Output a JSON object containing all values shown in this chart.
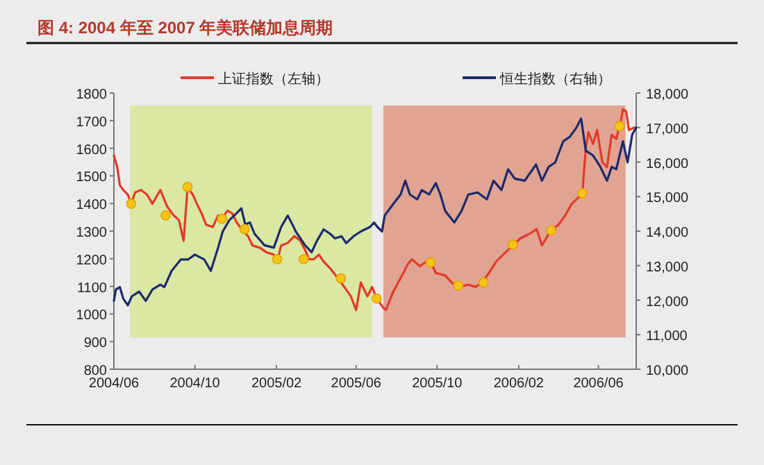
{
  "chart_data": {
    "type": "line",
    "title": "图 4: 2004 年至 2007 年美联储加息周期",
    "legend": "top",
    "grid": false,
    "xlim": [
      "2004-06-01",
      "2006-07-28"
    ],
    "xticks": [
      {
        "value": "2004-06-01",
        "label": "2004/06"
      },
      {
        "value": "2004-10-01",
        "label": "2004/10"
      },
      {
        "value": "2005-02-01",
        "label": "2005/02"
      },
      {
        "value": "2005-06-01",
        "label": "2005/06"
      },
      {
        "value": "2005-10-01",
        "label": "2005/10"
      },
      {
        "value": "2006-02-01",
        "label": "2006/02"
      },
      {
        "value": "2006-06-01",
        "label": "2006/06"
      }
    ],
    "ylim": [
      800,
      1800
    ],
    "yticks": [
      800,
      900,
      1000,
      1100,
      1200,
      1300,
      1400,
      1500,
      1600,
      1700,
      1800
    ],
    "y2lim": [
      10000,
      18000
    ],
    "y2ticks": [
      {
        "value": 10000,
        "label": "10,000"
      },
      {
        "value": 11000,
        "label": "11,000"
      },
      {
        "value": 12000,
        "label": "12,000"
      },
      {
        "value": 13000,
        "label": "13,000"
      },
      {
        "value": 14000,
        "label": "14,000"
      },
      {
        "value": 15000,
        "label": "15,000"
      },
      {
        "value": 16000,
        "label": "16,000"
      },
      {
        "value": 17000,
        "label": "17,000"
      },
      {
        "value": 18000,
        "label": "18,000"
      }
    ],
    "bands": [
      {
        "axis": "x",
        "from": "2004-06-25",
        "to": "2005-06-25",
        "color": "#dbe8a4"
      },
      {
        "axis": "x",
        "from": "2005-07-12",
        "to": "2006-07-12",
        "color": "#e1a493"
      }
    ],
    "series": [
      {
        "name": "上证指数（左轴）",
        "marker": "none",
        "line_style": "solid",
        "color": "#e23a28",
        "x": [
          "2004-06-01",
          "2004-06-06",
          "2004-06-10",
          "2004-06-15",
          "2004-06-22",
          "2004-06-27",
          "2004-07-03",
          "2004-07-12",
          "2004-07-21",
          "2004-07-29",
          "2004-08-10",
          "2004-08-20",
          "2004-08-30",
          "2004-09-07",
          "2004-09-14",
          "2004-09-20",
          "2004-09-28",
          "2004-10-04",
          "2004-10-11",
          "2004-10-18",
          "2004-10-28",
          "2004-11-05",
          "2004-11-12",
          "2004-11-19",
          "2004-11-26",
          "2004-12-03",
          "2004-12-10",
          "2004-12-20",
          "2004-12-27",
          "2005-01-07",
          "2005-01-17",
          "2005-01-28",
          "2005-02-02",
          "2005-02-08",
          "2005-02-18",
          "2005-02-28",
          "2005-03-09",
          "2005-03-16",
          "2005-03-22",
          "2005-03-29",
          "2005-04-06",
          "2005-04-13",
          "2005-04-23",
          "2005-05-04",
          "2005-05-14",
          "2005-05-24",
          "2005-06-01",
          "2005-06-08",
          "2005-06-18",
          "2005-06-25",
          "2005-07-02",
          "2005-07-12",
          "2005-07-16",
          "2005-07-27",
          "2005-08-11",
          "2005-08-18",
          "2005-08-24",
          "2005-09-05",
          "2005-09-15",
          "2005-09-21",
          "2005-09-29",
          "2005-10-13",
          "2005-10-23",
          "2005-11-03",
          "2005-11-17",
          "2005-11-28",
          "2005-12-08",
          "2005-12-18",
          "2005-12-29",
          "2006-01-12",
          "2006-01-23",
          "2006-02-03",
          "2006-02-17",
          "2006-02-28",
          "2006-03-08",
          "2006-03-21",
          "2006-04-02",
          "2006-04-12",
          "2006-04-22",
          "2006-05-03",
          "2006-05-08",
          "2006-05-13",
          "2006-05-17",
          "2006-05-24",
          "2006-05-30",
          "2006-06-07",
          "2006-06-14",
          "2006-06-21",
          "2006-06-28",
          "2006-07-05",
          "2006-07-08",
          "2006-07-13",
          "2006-07-17",
          "2006-07-25"
        ],
        "values": [
          1574,
          1532,
          1466,
          1449,
          1432,
          1399,
          1440,
          1449,
          1432,
          1399,
          1449,
          1390,
          1357,
          1340,
          1265,
          1457,
          1432,
          1399,
          1365,
          1323,
          1315,
          1357,
          1348,
          1374,
          1365,
          1332,
          1307,
          1282,
          1248,
          1240,
          1223,
          1215,
          1190,
          1248,
          1257,
          1282,
          1265,
          1232,
          1198,
          1198,
          1215,
          1190,
          1165,
          1131,
          1098,
          1064,
          1014,
          1114,
          1064,
          1098,
          1056,
          1022,
          1015,
          1081,
          1148,
          1181,
          1198,
          1173,
          1190,
          1190,
          1148,
          1140,
          1114,
          1098,
          1106,
          1098,
          1114,
          1148,
          1190,
          1223,
          1248,
          1273,
          1290,
          1307,
          1248,
          1302,
          1323,
          1357,
          1399,
          1424,
          1440,
          1599,
          1658,
          1616,
          1666,
          1549,
          1532,
          1649,
          1633,
          1700,
          1741,
          1733,
          1666,
          1675
        ]
      },
      {
        "name": "恒生指数（右轴）",
        "axis": "y2",
        "marker": "none",
        "line_style": "solid",
        "color": "#1c2a6c",
        "x": [
          "2004-06-01",
          "2004-06-04",
          "2004-06-10",
          "2004-06-15",
          "2004-06-22",
          "2004-06-28",
          "2004-07-09",
          "2004-07-19",
          "2004-07-29",
          "2004-08-10",
          "2004-08-16",
          "2004-08-27",
          "2004-09-10",
          "2004-09-21",
          "2004-10-01",
          "2004-10-15",
          "2004-10-25",
          "2004-11-05",
          "2004-11-12",
          "2004-11-22",
          "2004-12-03",
          "2004-12-10",
          "2004-12-16",
          "2004-12-23",
          "2004-12-30",
          "2005-01-14",
          "2005-01-28",
          "2005-02-08",
          "2005-02-18",
          "2005-02-25",
          "2005-03-02",
          "2005-03-09",
          "2005-03-16",
          "2005-03-26",
          "2005-04-03",
          "2005-04-13",
          "2005-04-23",
          "2005-04-30",
          "2005-05-10",
          "2005-05-17",
          "2005-05-28",
          "2005-06-08",
          "2005-06-22",
          "2005-06-28",
          "2005-07-03",
          "2005-07-10",
          "2005-07-14",
          "2005-07-27",
          "2005-08-07",
          "2005-08-14",
          "2005-08-21",
          "2005-09-01",
          "2005-09-08",
          "2005-09-19",
          "2005-09-29",
          "2005-10-06",
          "2005-10-13",
          "2005-10-27",
          "2005-11-07",
          "2005-11-17",
          "2005-12-01",
          "2005-12-15",
          "2005-12-25",
          "2006-01-06",
          "2006-01-16",
          "2006-01-26",
          "2006-02-10",
          "2006-02-27",
          "2006-03-08",
          "2006-03-18",
          "2006-03-28",
          "2006-04-09",
          "2006-04-19",
          "2006-04-29",
          "2006-05-06",
          "2006-05-13",
          "2006-05-24",
          "2006-06-04",
          "2006-06-14",
          "2006-06-21",
          "2006-06-28",
          "2006-07-08",
          "2006-07-15",
          "2006-07-22",
          "2006-07-28"
        ],
        "values": [
          11980,
          12310,
          12380,
          12050,
          11850,
          12110,
          12250,
          11980,
          12310,
          12450,
          12380,
          12850,
          13180,
          13180,
          13320,
          13180,
          12850,
          13520,
          13990,
          14320,
          14520,
          14660,
          14190,
          14250,
          13920,
          13590,
          13520,
          14120,
          14450,
          14190,
          13990,
          13790,
          13590,
          13390,
          13720,
          14050,
          13920,
          13790,
          13850,
          13650,
          13850,
          13990,
          14120,
          14250,
          14120,
          13990,
          14450,
          14790,
          15060,
          15460,
          15060,
          14920,
          15190,
          15060,
          15390,
          15060,
          14590,
          14250,
          14590,
          15060,
          15120,
          14920,
          15460,
          15190,
          15790,
          15520,
          15460,
          15930,
          15460,
          15860,
          15990,
          16600,
          16730,
          17000,
          17260,
          16330,
          16190,
          15860,
          15460,
          15860,
          15790,
          16600,
          15990,
          16800,
          17000
        ]
      },
      {
        "type": "scatter",
        "marker": "circle",
        "color": "#f3c41a",
        "x": [
          "2004-06-27",
          "2004-08-18",
          "2004-09-20",
          "2004-11-11",
          "2004-12-15",
          "2005-02-02",
          "2005-03-14",
          "2005-05-09",
          "2005-07-02",
          "2005-09-21",
          "2005-11-02",
          "2005-12-10",
          "2006-01-23",
          "2006-03-22",
          "2006-05-08",
          "2006-07-03"
        ],
        "values": [
          1399,
          1357,
          1460,
          1345,
          1307,
          1198,
          1198,
          1129,
          1056,
          1186,
          1103,
          1114,
          1251,
          1303,
          1437,
          1680
        ]
      }
    ]
  }
}
